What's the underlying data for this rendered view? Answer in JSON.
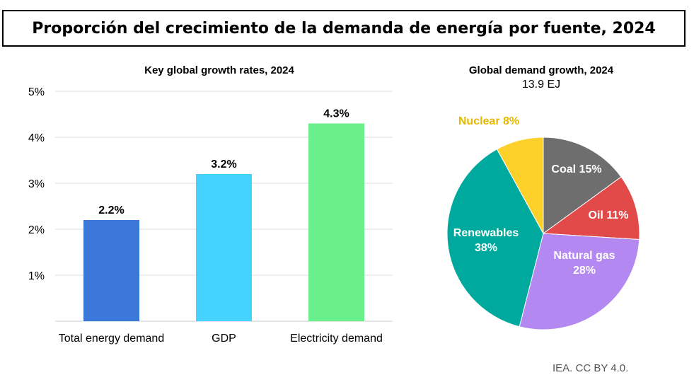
{
  "page": {
    "title": "Proporción del crecimiento de la demanda de energía por fuente, 2024",
    "credit": "IEA. CC BY 4.0."
  },
  "chart_data": [
    {
      "type": "bar",
      "title": "Key global growth rates, 2024",
      "categories": [
        "Total energy demand",
        "GDP",
        "Electricity demand"
      ],
      "values": [
        2.2,
        3.2,
        4.3
      ],
      "value_labels": [
        "2.2%",
        "3.2%",
        "4.3%"
      ],
      "colors": [
        "#3c78d8",
        "#46d2ff",
        "#69f08c"
      ],
      "ylim": [
        0,
        5
      ],
      "yticks": [
        1,
        2,
        3,
        4,
        5
      ],
      "ytick_labels": [
        "1%",
        "2%",
        "3%",
        "4%",
        "5%"
      ],
      "grid": true,
      "legend": "none"
    },
    {
      "type": "pie",
      "title": "Global demand growth, 2024",
      "subtitle": "13.9 EJ",
      "slices": [
        {
          "label": "Coal 15%",
          "value": 15,
          "color": "#6e6e6e",
          "label_color": "#ffffff"
        },
        {
          "label": "Oil 11%",
          "value": 11,
          "color": "#e24a4a",
          "label_color": "#ffffff"
        },
        {
          "label": "Natural gas\n28%",
          "value": 28,
          "color": "#b388f0",
          "label_color": "#ffffff"
        },
        {
          "label": "Renewables\n38%",
          "value": 38,
          "color": "#00a99d",
          "label_color": "#ffffff"
        },
        {
          "label": "Nuclear 8%",
          "value": 8,
          "color": "#fdd02a",
          "label_color": "#e6b800"
        }
      ]
    }
  ]
}
